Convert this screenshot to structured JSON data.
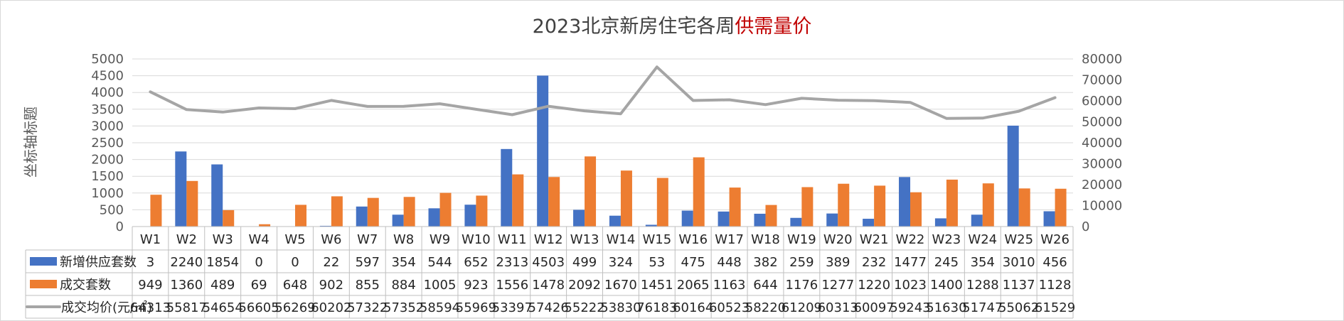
{
  "chart_data": {
    "type": "bar",
    "title": "2023北京新房住宅各周",
    "title_highlight": "供需量价",
    "ylabel": "坐标轴标题",
    "ylim": [
      0,
      5000
    ],
    "yticks": [
      0,
      500,
      1000,
      1500,
      2000,
      2500,
      3000,
      3500,
      4000,
      4500,
      5000
    ],
    "y2lim": [
      0,
      80000
    ],
    "y2ticks": [
      0,
      10000,
      20000,
      30000,
      40000,
      50000,
      60000,
      70000,
      80000
    ],
    "grid": true,
    "data_table": true,
    "categories": [
      "W1",
      "W2",
      "W3",
      "W4",
      "W5",
      "W6",
      "W7",
      "W8",
      "W9",
      "W10",
      "W11",
      "W12",
      "W13",
      "W14",
      "W15",
      "W16",
      "W17",
      "W18",
      "W19",
      "W20",
      "W21",
      "W22",
      "W23",
      "W24",
      "W25",
      "W26"
    ],
    "series": [
      {
        "name": "新增供应套数",
        "type": "bar",
        "axis": "left",
        "color": "#4472c4",
        "values": [
          3,
          2240,
          1854,
          0,
          0,
          22,
          597,
          354,
          544,
          652,
          2313,
          4503,
          499,
          324,
          53,
          475,
          448,
          382,
          259,
          389,
          232,
          1477,
          245,
          354,
          3010,
          456
        ]
      },
      {
        "name": "成交套数",
        "type": "bar",
        "axis": "left",
        "color": "#ed7d31",
        "values": [
          949,
          1360,
          489,
          69,
          648,
          902,
          855,
          884,
          1005,
          923,
          1556,
          1478,
          2092,
          1670,
          1451,
          2065,
          1163,
          644,
          1176,
          1277,
          1220,
          1023,
          1400,
          1288,
          1137,
          1128
        ]
      },
      {
        "name": "成交均价(元/㎡)",
        "type": "line",
        "axis": "right",
        "color": "#a5a5a5",
        "values": [
          64313,
          55817,
          54654,
          56605,
          56269,
          60202,
          57322,
          57352,
          58594,
          55969,
          53397,
          57426,
          55222,
          53830,
          76183,
          60164,
          60523,
          58220,
          61209,
          60313,
          60097,
          59243,
          51630,
          51747,
          55062,
          61529
        ]
      }
    ]
  }
}
